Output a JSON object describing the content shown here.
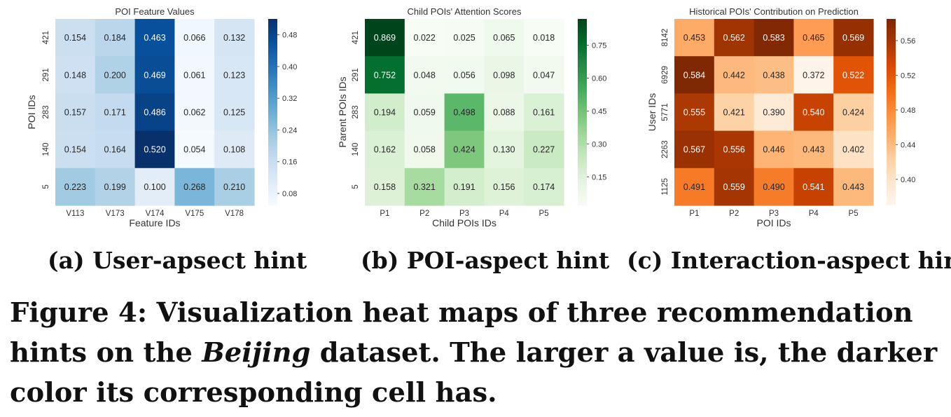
{
  "chart_data": [
    {
      "type": "heatmap",
      "title": "POI Feature Values",
      "xlabel": "Feature IDs",
      "ylabel": "POI IDs",
      "x_categories": [
        "V113",
        "V173",
        "V174",
        "V175",
        "V178"
      ],
      "y_categories": [
        "421",
        "291",
        "283",
        "140",
        "5"
      ],
      "values": [
        [
          0.154,
          0.184,
          0.463,
          0.066,
          0.132
        ],
        [
          0.148,
          0.2,
          0.469,
          0.061,
          0.123
        ],
        [
          0.157,
          0.171,
          0.486,
          0.062,
          0.125
        ],
        [
          0.154,
          0.164,
          0.52,
          0.054,
          0.108
        ],
        [
          0.223,
          0.199,
          0.1,
          0.268,
          0.21
        ]
      ],
      "colormap": [
        "#f7fbff",
        "#deebf7",
        "#c6dbef",
        "#9ecae1",
        "#6baed6",
        "#4292c6",
        "#2171b5",
        "#08519c",
        "#08306b"
      ],
      "vmin": 0.05,
      "vmax": 0.52,
      "colorbar_ticks": [
        "0.08",
        "0.16",
        "0.24",
        "0.32",
        "0.40",
        "0.48"
      ]
    },
    {
      "type": "heatmap",
      "title": "Child POIs' Attention Scores",
      "xlabel": "Child POIs IDs",
      "ylabel": "Parent POIs IDs",
      "x_categories": [
        "P1",
        "P2",
        "P3",
        "P4",
        "P5"
      ],
      "y_categories": [
        "421",
        "291",
        "283",
        "140",
        "5"
      ],
      "values": [
        [
          0.869,
          0.022,
          0.025,
          0.065,
          0.018
        ],
        [
          0.752,
          0.048,
          0.056,
          0.098,
          0.047
        ],
        [
          0.194,
          0.059,
          0.498,
          0.088,
          0.161
        ],
        [
          0.162,
          0.058,
          0.424,
          0.13,
          0.227
        ],
        [
          0.158,
          0.321,
          0.191,
          0.156,
          0.174
        ]
      ],
      "colormap": [
        "#f7fcf5",
        "#e5f5e0",
        "#c7e9c0",
        "#a1d99b",
        "#74c476",
        "#41ab5d",
        "#238b45",
        "#006d2c",
        "#00441b"
      ],
      "vmin": 0.02,
      "vmax": 0.87,
      "colorbar_ticks": [
        "0.15",
        "0.30",
        "0.45",
        "0.60",
        "0.75"
      ]
    },
    {
      "type": "heatmap",
      "title": "Historical POIs' Contribution on Prediction",
      "xlabel": "POI IDs",
      "ylabel": "User IDs",
      "x_categories": [
        "P1",
        "P2",
        "P3",
        "P4",
        "P5"
      ],
      "y_categories": [
        "8142",
        "6929",
        "5771",
        "2263",
        "1125"
      ],
      "values": [
        [
          0.453,
          0.562,
          0.583,
          0.465,
          0.569
        ],
        [
          0.584,
          0.442,
          0.438,
          0.372,
          0.522
        ],
        [
          0.555,
          0.421,
          0.39,
          0.54,
          0.424
        ],
        [
          0.567,
          0.556,
          0.446,
          0.443,
          0.402
        ],
        [
          0.491,
          0.559,
          0.49,
          0.541,
          0.443
        ]
      ],
      "colormap": [
        "#fff5eb",
        "#fee6ce",
        "#fdd0a2",
        "#fdae6b",
        "#fd8d3c",
        "#f16913",
        "#d94801",
        "#a63603",
        "#7f2704"
      ],
      "vmin": 0.37,
      "vmax": 0.585,
      "colorbar_ticks": [
        "0.40",
        "0.44",
        "0.48",
        "0.52",
        "0.56"
      ]
    }
  ],
  "subcaptions": {
    "a": "(a) User-apsect hint",
    "b": "(b) POI-aspect hint",
    "c": "(c) Interaction-aspect hint"
  },
  "figure_caption": {
    "label": "Figure 4:",
    "text_before": "Visualization heat maps of three recommendation hints on the",
    "dataset": "Beijing",
    "text_after": "dataset. The larger a value is, the darker color its corresponding cell has."
  }
}
